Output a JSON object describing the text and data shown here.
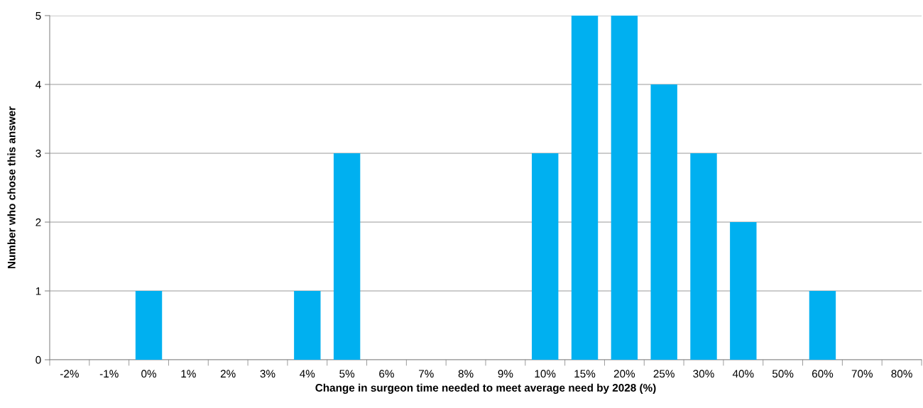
{
  "chart_data": {
    "type": "bar",
    "xlabel": "Change in surgeon time needed to meet average need by 2028 (%)",
    "ylabel": "Number who chose this answer",
    "categories": [
      "-2%",
      "-1%",
      "0%",
      "1%",
      "2%",
      "3%",
      "4%",
      "5%",
      "6%",
      "7%",
      "8%",
      "9%",
      "10%",
      "15%",
      "20%",
      "25%",
      "30%",
      "40%",
      "50%",
      "60%",
      "70%",
      "80%"
    ],
    "values": [
      0,
      0,
      1,
      0,
      0,
      0,
      1,
      3,
      0,
      0,
      0,
      0,
      3,
      5,
      5,
      4,
      3,
      2,
      0,
      1,
      0,
      0
    ],
    "color": "#00b0f0",
    "ylim": [
      0,
      5
    ],
    "yticks": [
      0,
      1,
      2,
      3,
      4,
      5
    ],
    "grid": "y",
    "legend": false
  }
}
